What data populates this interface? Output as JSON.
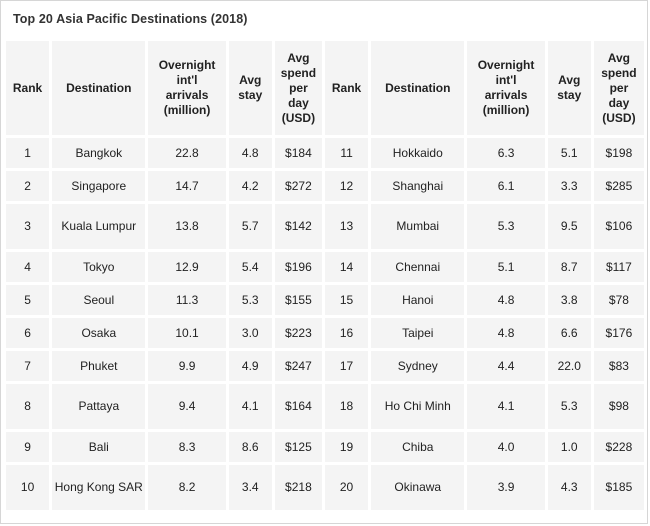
{
  "title": "Top 20 Asia Pacific Destinations (2018)",
  "columns": {
    "rank": "Rank",
    "destination": "Destination",
    "arrivals_lines": [
      "Overnight",
      "int'l",
      "arrivals",
      "(million)"
    ],
    "stay_lines": [
      "Avg",
      "stay"
    ],
    "spend_lines": [
      "Avg",
      "spend",
      "per",
      "day",
      "(USD)"
    ]
  },
  "rows": [
    {
      "left": {
        "rank": "1",
        "dest": "Bangkok",
        "arrivals": "22.8",
        "stay": "4.8",
        "spend": "$184"
      },
      "right": {
        "rank": "11",
        "dest": "Hokkaido",
        "arrivals": "6.3",
        "stay": "5.1",
        "spend": "$198"
      }
    },
    {
      "left": {
        "rank": "2",
        "dest": "Singapore",
        "arrivals": "14.7",
        "stay": "4.2",
        "spend": "$272"
      },
      "right": {
        "rank": "12",
        "dest": "Shanghai",
        "arrivals": "6.1",
        "stay": "3.3",
        "spend": "$285"
      }
    },
    {
      "left": {
        "rank": "3",
        "dest": "Kuala Lumpur",
        "arrivals": "13.8",
        "stay": "5.7",
        "spend": "$142"
      },
      "right": {
        "rank": "13",
        "dest": "Mumbai",
        "arrivals": "5.3",
        "stay": "9.5",
        "spend": "$106"
      }
    },
    {
      "left": {
        "rank": "4",
        "dest": "Tokyo",
        "arrivals": "12.9",
        "stay": "5.4",
        "spend": "$196"
      },
      "right": {
        "rank": "14",
        "dest": "Chennai",
        "arrivals": "5.1",
        "stay": "8.7",
        "spend": "$117"
      }
    },
    {
      "left": {
        "rank": "5",
        "dest": "Seoul",
        "arrivals": "11.3",
        "stay": "5.3",
        "spend": "$155"
      },
      "right": {
        "rank": "15",
        "dest": "Hanoi",
        "arrivals": "4.8",
        "stay": "3.8",
        "spend": "$78"
      }
    },
    {
      "left": {
        "rank": "6",
        "dest": "Osaka",
        "arrivals": "10.1",
        "stay": "3.0",
        "spend": "$223"
      },
      "right": {
        "rank": "16",
        "dest": "Taipei",
        "arrivals": "4.8",
        "stay": "6.6",
        "spend": "$176"
      }
    },
    {
      "left": {
        "rank": "7",
        "dest": "Phuket",
        "arrivals": "9.9",
        "stay": "4.9",
        "spend": "$247"
      },
      "right": {
        "rank": "17",
        "dest": "Sydney",
        "arrivals": "4.4",
        "stay": "22.0",
        "spend": "$83"
      }
    },
    {
      "left": {
        "rank": "8",
        "dest": "Pattaya",
        "arrivals": "9.4",
        "stay": "4.1",
        "spend": "$164"
      },
      "right": {
        "rank": "18",
        "dest": "Ho Chi Minh",
        "arrivals": "4.1",
        "stay": "5.3",
        "spend": "$98"
      }
    },
    {
      "left": {
        "rank": "9",
        "dest": "Bali",
        "arrivals": "8.3",
        "stay": "8.6",
        "spend": "$125"
      },
      "right": {
        "rank": "19",
        "dest": "Chiba",
        "arrivals": "4.0",
        "stay": "1.0",
        "spend": "$228"
      }
    },
    {
      "left": {
        "rank": "10",
        "dest": "Hong Kong SAR",
        "arrivals": "8.2",
        "stay": "3.4",
        "spend": "$218"
      },
      "right": {
        "rank": "20",
        "dest": "Okinawa",
        "arrivals": "3.9",
        "stay": "4.3",
        "spend": "$185"
      }
    }
  ]
}
